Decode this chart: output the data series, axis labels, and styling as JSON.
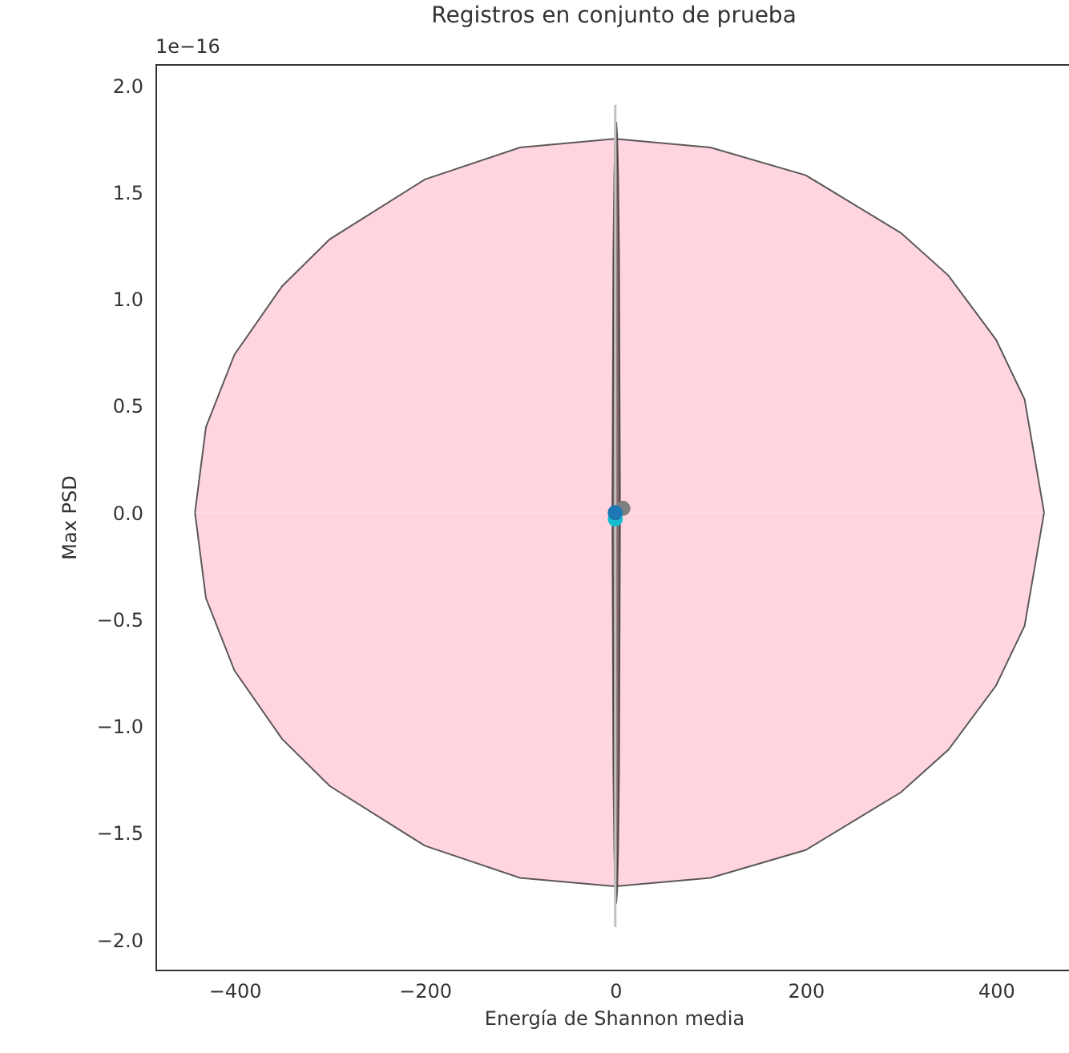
{
  "chart_data": {
    "type": "scatter",
    "title": "Registros en conjunto de prueba",
    "xlabel": "Energía de Shannon media",
    "ylabel": "Max PSD",
    "annotations": [
      "1e−16"
    ],
    "xlim": [
      -483,
      480
    ],
    "ylim": [
      -2.14,
      2.1
    ],
    "xticks": [
      {
        "value": -400,
        "label": "−400"
      },
      {
        "value": -200,
        "label": "−200"
      },
      0,
      200,
      400
    ],
    "yticks": [
      {
        "value": -2,
        "label": "−2.0"
      },
      {
        "value": -1.5,
        "label": "−1.5"
      },
      {
        "value": -1,
        "label": "−1.0"
      },
      {
        "value": -0.5,
        "label": "−0.5"
      },
      {
        "value": 0,
        "label": "0.0"
      },
      {
        "value": 0.5,
        "label": "0.5"
      },
      {
        "value": 1,
        "label": "1.0"
      },
      {
        "value": 1.5,
        "label": "1.5"
      },
      {
        "value": 2,
        "label": "2.0"
      }
    ],
    "grid": false,
    "series": [
      {
        "type": "area",
        "color": "#ffd6df",
        "x": [
          -441.5,
          -430,
          -400,
          -350,
          -300,
          -200,
          -100,
          0,
          100,
          200,
          300,
          350,
          400,
          430,
          450.5
        ],
        "values": [
          0,
          0.4,
          0.74,
          1.06,
          1.28,
          1.56,
          1.71,
          1.75,
          1.71,
          1.58,
          1.31,
          1.11,
          0.81,
          0.53,
          0
        ]
      },
      {
        "type": "area",
        "color": "#ffd6df",
        "x": [
          -441.5,
          -430,
          -400,
          -350,
          -300,
          -200,
          -100,
          0,
          100,
          200,
          300,
          350,
          400,
          430,
          450.5
        ],
        "values": [
          0,
          -0.4,
          -0.74,
          -1.06,
          -1.28,
          -1.56,
          -1.71,
          -1.75,
          -1.71,
          -1.58,
          -1.31,
          -1.11,
          -0.81,
          -0.53,
          0
        ]
      },
      {
        "type": "area",
        "color": "#8a6a70",
        "x": [
          -3,
          -2,
          -1,
          0,
          1,
          2,
          3,
          4,
          5
        ],
        "values": [
          0,
          1.21,
          1.58,
          1.77,
          1.83,
          1.77,
          1.58,
          1.21,
          0
        ]
      },
      {
        "type": "area",
        "color": "#8a6a70",
        "x": [
          -3,
          -2,
          -1,
          0,
          1,
          2,
          3,
          4,
          5
        ],
        "values": [
          0,
          -1.21,
          -1.58,
          -1.77,
          -1.83,
          -1.77,
          -1.58,
          -1.21,
          0
        ]
      },
      {
        "type": "line",
        "color": "#c0c0c0",
        "x": [
          0,
          0,
          0
        ],
        "values": [
          1.91,
          0,
          -1.94
        ]
      },
      {
        "type": "scatter",
        "color": "#7f7f7f",
        "x": [
          8
        ],
        "values": [
          0.02
        ]
      },
      {
        "type": "scatter",
        "color": "#17becf",
        "x": [
          0
        ],
        "values": [
          -0.03
        ]
      },
      {
        "type": "scatter",
        "color": "#1f77b4",
        "x": [
          0
        ],
        "values": [
          0
        ]
      }
    ]
  }
}
